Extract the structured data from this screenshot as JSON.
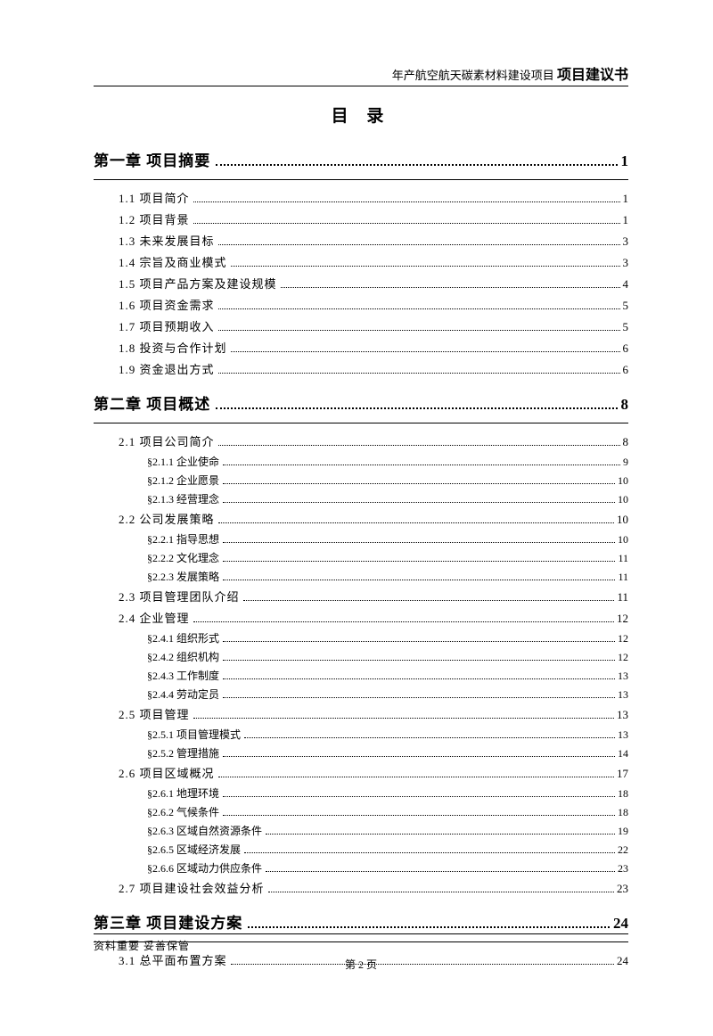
{
  "header": {
    "project": "年产航空航天碳素材料建设项目",
    "doctype": "项目建议书"
  },
  "title": "目 录",
  "toc": [
    {
      "label": "第一章 项目摘要",
      "page": "1",
      "sections": [
        {
          "label": "1.1 项目简介",
          "page": "1"
        },
        {
          "label": "1.2 项目背景",
          "page": "1"
        },
        {
          "label": "1.3 未来发展目标",
          "page": "3"
        },
        {
          "label": "1.4 宗旨及商业模式",
          "page": "3"
        },
        {
          "label": "1.5 项目产品方案及建设规模",
          "page": "4"
        },
        {
          "label": "1.6 项目资金需求",
          "page": "5"
        },
        {
          "label": "1.7 项目预期收入",
          "page": "5"
        },
        {
          "label": "1.8 投资与合作计划",
          "page": "6"
        },
        {
          "label": "1.9 资金退出方式",
          "page": "6"
        }
      ]
    },
    {
      "label": "第二章 项目概述",
      "page": "8",
      "sections": [
        {
          "label": "2.1 项目公司简介",
          "page": "8",
          "subs": [
            {
              "label": "§2.1.1 企业使命",
              "page": "9"
            },
            {
              "label": "§2.1.2 企业愿景",
              "page": "10"
            },
            {
              "label": "§2.1.3 经营理念",
              "page": "10"
            }
          ]
        },
        {
          "label": "2.2 公司发展策略",
          "page": "10",
          "subs": [
            {
              "label": "§2.2.1 指导思想",
              "page": "10"
            },
            {
              "label": "§2.2.2 文化理念",
              "page": "11"
            },
            {
              "label": "§2.2.3 发展策略",
              "page": "11"
            }
          ]
        },
        {
          "label": "2.3 项目管理团队介绍",
          "page": "11"
        },
        {
          "label": "2.4 企业管理",
          "page": "12",
          "subs": [
            {
              "label": "§2.4.1 组织形式",
              "page": "12"
            },
            {
              "label": "§2.4.2 组织机构",
              "page": "12"
            },
            {
              "label": "§2.4.3 工作制度",
              "page": "13"
            },
            {
              "label": "§2.4.4 劳动定员",
              "page": "13"
            }
          ]
        },
        {
          "label": "2.5 项目管理",
          "page": "13",
          "subs": [
            {
              "label": "§2.5.1 项目管理模式",
              "page": "13"
            },
            {
              "label": "§2.5.2 管理措施",
              "page": "14"
            }
          ]
        },
        {
          "label": "2.6 项目区域概况",
          "page": "17",
          "subs": [
            {
              "label": "§2.6.1 地理环境",
              "page": "18"
            },
            {
              "label": "§2.6.2 气候条件",
              "page": "18"
            },
            {
              "label": "§2.6.3 区域自然资源条件",
              "page": "19"
            },
            {
              "label": "§2.6.5 区域经济发展",
              "page": "22"
            },
            {
              "label": "§2.6.6 区域动力供应条件",
              "page": "23"
            }
          ]
        },
        {
          "label": "2.7 项目建设社会效益分析",
          "page": "23"
        }
      ]
    },
    {
      "label": "第三章 项目建设方案",
      "page": "24",
      "sections": [
        {
          "label": "3.1 总平面布置方案",
          "page": "24"
        }
      ]
    }
  ],
  "footer": {
    "note": "资料重要 妥善保管",
    "pagenum": "第 2 页"
  }
}
